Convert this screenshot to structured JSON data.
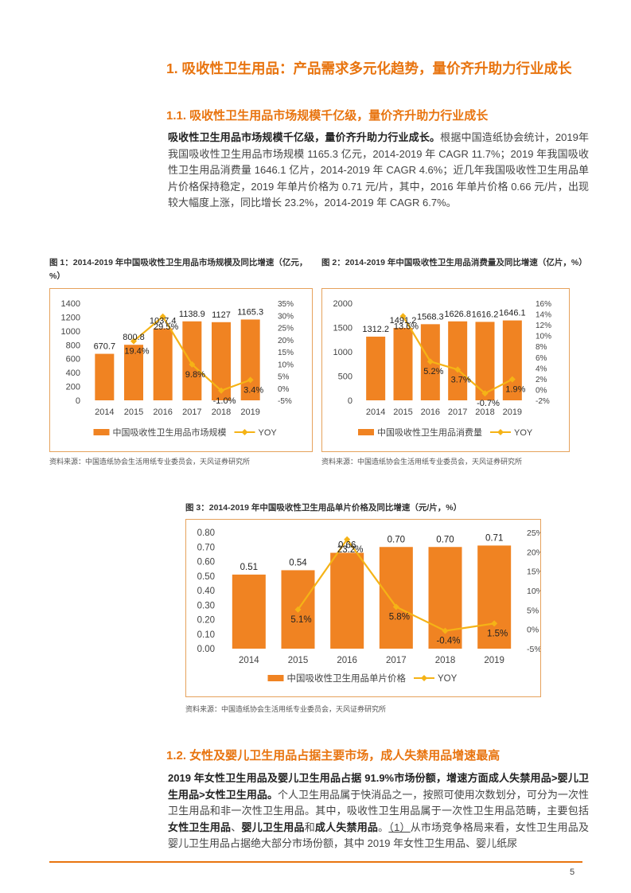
{
  "section": {
    "h1": "1. 吸收性卫生用品：产品需求多元化趋势，量价齐升助力行业成长",
    "h2_1": "1.1. 吸收性卫生用品市场规模千亿级，量价齐升助力行业成长",
    "p1_bold": "吸收性卫生用品市场规模千亿级，量价齐升助力行业成长。",
    "p1_text": "根据中国造纸协会统计，2019年我国吸收性卫生用品市场规模 1165.3 亿元，2014-2019 年 CAGR 11.7%；2019 年我国吸收性卫生用品消费量 1646.1 亿片，2014-2019 年 CAGR 4.6%；近几年我国吸收性卫生用品单片价格保持稳定，2019 年单片价格为 0.71 元/片，其中，2016 年单片价格 0.66 元/片，出现较大幅度上涨，同比增长 23.2%，2014-2019 年 CAGR 6.7%。",
    "h2_2": "1.2. 女性及婴儿卫生用品占据主要市场，成人失禁用品增速最高",
    "p2_bold": "2019 年女性卫生用品及婴儿卫生用品占据 91.9%市场份额，增速方面成人失禁用品>婴儿卫生用品>女性卫生用品。",
    "p2_text1": "个人卫生用品属于快消品之一，按照可使用次数划分，可分为一次性卫生用品和非一次性卫生用品。其中，吸收性卫生用品属于一次性卫生用品范畴，主要包括",
    "p2_b1": "女性卫生用品",
    "p2_sep1": "、",
    "p2_b2": "婴儿卫生用品",
    "p2_sep2": "和",
    "p2_b3": "成人失禁用品",
    "p2_sep3": "。",
    "p2_u": "（1）",
    "p2_text2": "从市场竞争格局来看，女性卫生用品及婴儿卫生用品占据绝大部分市场份额，其中 2019 年女性卫生用品、婴儿纸尿"
  },
  "figures": {
    "fig1_caption": "图 1：2014-2019 年中国吸收性卫生用品市场规模及同比增速（亿元，%）",
    "fig2_caption": "图 2：2014-2019 年中国吸收性卫生用品消费量及同比增速（亿片，%）",
    "fig3_caption": "图 3：2014-2019 年中国吸收性卫生用品单片价格及同比增速（元/片，%）",
    "source": "资料来源：中国造纸协会生活用纸专业委员会，天风证券研究所"
  },
  "chart_data": [
    {
      "type": "bar",
      "categories": [
        "2014",
        "2015",
        "2016",
        "2017",
        "2018",
        "2019"
      ],
      "series": [
        {
          "name": "中国吸收性卫生用品市场规模",
          "values": [
            670.7,
            800.8,
            1037.4,
            1138.9,
            1127,
            1165.3
          ],
          "labels": [
            "670.7",
            "800.8",
            "1037.4",
            "1138.9",
            "1127",
            "1165.3"
          ]
        },
        {
          "name": "YOY",
          "type": "line",
          "values": [
            null,
            19.4,
            29.5,
            9.8,
            -1.0,
            3.4
          ],
          "labels": [
            "",
            "19.4%",
            "29.5%",
            "9.8%",
            "-1.0%",
            "3.4%"
          ]
        }
      ],
      "ylim": [
        0,
        1400
      ],
      "yticks": [
        "0",
        "200",
        "400",
        "600",
        "800",
        "1000",
        "1200",
        "1400"
      ],
      "y2lim": [
        -5,
        35
      ],
      "y2ticks": [
        "-5%",
        "0%",
        "5%",
        "10%",
        "15%",
        "20%",
        "25%",
        "30%",
        "35%"
      ],
      "legend": "bottom"
    },
    {
      "type": "bar",
      "categories": [
        "2014",
        "2015",
        "2016",
        "2017",
        "2018",
        "2019"
      ],
      "series": [
        {
          "name": "中国吸收性卫生用品消费量",
          "values": [
            1312.2,
            1491.2,
            1568.3,
            1626.8,
            1616.2,
            1646.1
          ],
          "labels": [
            "1312.2",
            "1491.2",
            "1568.3",
            "1626.8",
            "1616.2",
            "1646.1"
          ]
        },
        {
          "name": "YOY",
          "type": "line",
          "values": [
            null,
            13.6,
            5.2,
            3.7,
            -0.7,
            1.9
          ],
          "labels": [
            "",
            "13.6%",
            "5.2%",
            "3.7%",
            "-0.7%",
            "1.9%"
          ]
        }
      ],
      "ylim": [
        0,
        2000
      ],
      "yticks": [
        "0",
        "500",
        "1000",
        "1500",
        "2000"
      ],
      "y2lim": [
        -2,
        16
      ],
      "y2ticks": [
        "-2%",
        "0%",
        "2%",
        "4%",
        "6%",
        "8%",
        "10%",
        "12%",
        "14%",
        "16%"
      ],
      "legend": "bottom"
    },
    {
      "type": "bar",
      "categories": [
        "2014",
        "2015",
        "2016",
        "2017",
        "2018",
        "2019"
      ],
      "series": [
        {
          "name": "中国吸收性卫生用品单片价格",
          "values": [
            0.51,
            0.54,
            0.66,
            0.7,
            0.7,
            0.71
          ],
          "labels": [
            "0.51",
            "0.54",
            "0.66",
            "0.70",
            "0.70",
            "0.71"
          ]
        },
        {
          "name": "YOY",
          "type": "line",
          "values": [
            null,
            5.1,
            23.2,
            5.8,
            -0.4,
            1.5
          ],
          "labels": [
            "",
            "5.1%",
            "23.2%",
            "5.8%",
            "-0.4%",
            "1.5%"
          ]
        }
      ],
      "ylim": [
        0,
        0.8
      ],
      "yticks": [
        "0.00",
        "0.10",
        "0.20",
        "0.30",
        "0.40",
        "0.50",
        "0.60",
        "0.70",
        "0.80"
      ],
      "y2lim": [
        -5,
        25
      ],
      "y2ticks": [
        "-5%",
        "0%",
        "5%",
        "10%",
        "15%",
        "20%",
        "25%"
      ],
      "legend": "bottom"
    }
  ],
  "colors": {
    "bar": "#F08322",
    "line": "#F5B316",
    "accent": "#E8740F"
  },
  "page_number": "5"
}
